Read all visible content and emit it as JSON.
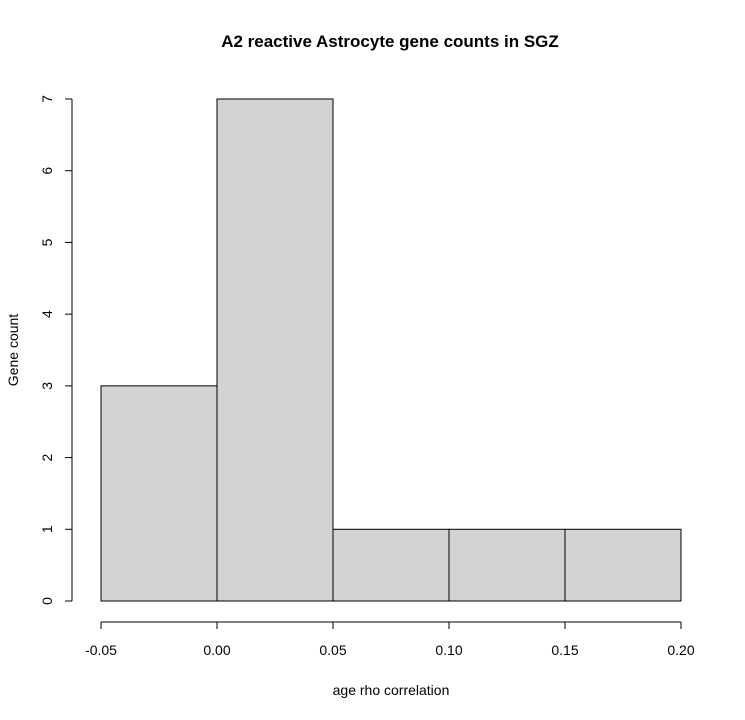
{
  "chart_data": {
    "type": "bar",
    "title": "A2 reactive Astrocyte gene counts in SGZ",
    "xlabel": "age rho correlation",
    "ylabel": "Gene count",
    "bins": [
      {
        "start": -0.05,
        "end": 0.0,
        "count": 3
      },
      {
        "start": 0.0,
        "end": 0.05,
        "count": 7
      },
      {
        "start": 0.05,
        "end": 0.1,
        "count": 1
      },
      {
        "start": 0.1,
        "end": 0.15,
        "count": 1
      },
      {
        "start": 0.15,
        "end": 0.2,
        "count": 1
      }
    ],
    "xlim": [
      -0.05,
      0.2
    ],
    "ylim": [
      0,
      7
    ],
    "xticks": [
      -0.05,
      0.0,
      0.05,
      0.1,
      0.15,
      0.2
    ],
    "xtick_labels": [
      "-0.05",
      "0.00",
      "0.05",
      "0.10",
      "0.15",
      "0.20"
    ],
    "yticks": [
      0,
      1,
      2,
      3,
      4,
      5,
      6,
      7
    ],
    "ytick_labels": [
      "0",
      "1",
      "2",
      "3",
      "4",
      "5",
      "6",
      "7"
    ],
    "grid": false,
    "bar_color": "#d3d3d3",
    "edge_color": "#000000"
  }
}
